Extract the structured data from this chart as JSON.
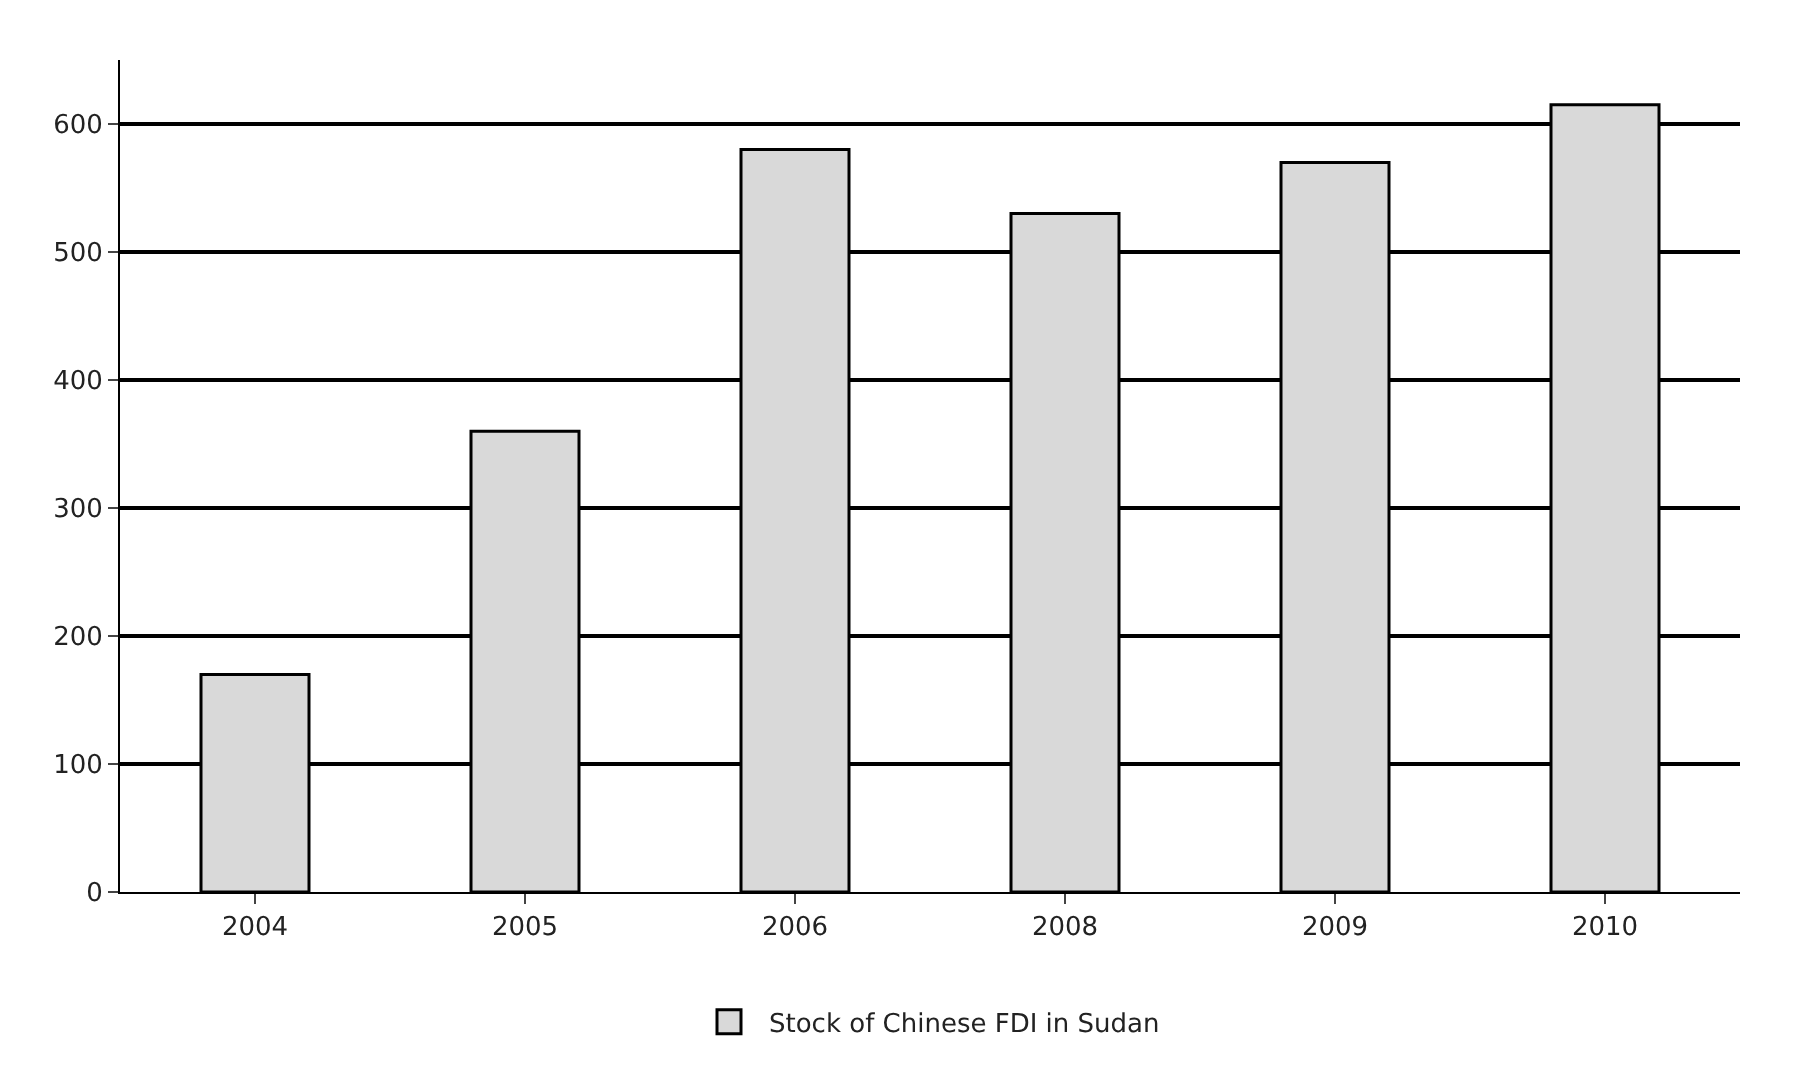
{
  "chart_data": {
    "type": "bar",
    "categories": [
      "2004",
      "2005",
      "2006",
      "2008",
      "2009",
      "2010"
    ],
    "series": [
      {
        "name": "Stock of Chinese FDI in Sudan",
        "color": "#d9d9d9",
        "values": [
          170,
          360,
          580,
          530,
          570,
          615
        ]
      }
    ],
    "ylim": [
      0,
      650
    ],
    "yticks": [
      0,
      100,
      200,
      300,
      400,
      500,
      600
    ],
    "grid": "y",
    "legend": "bottom"
  }
}
